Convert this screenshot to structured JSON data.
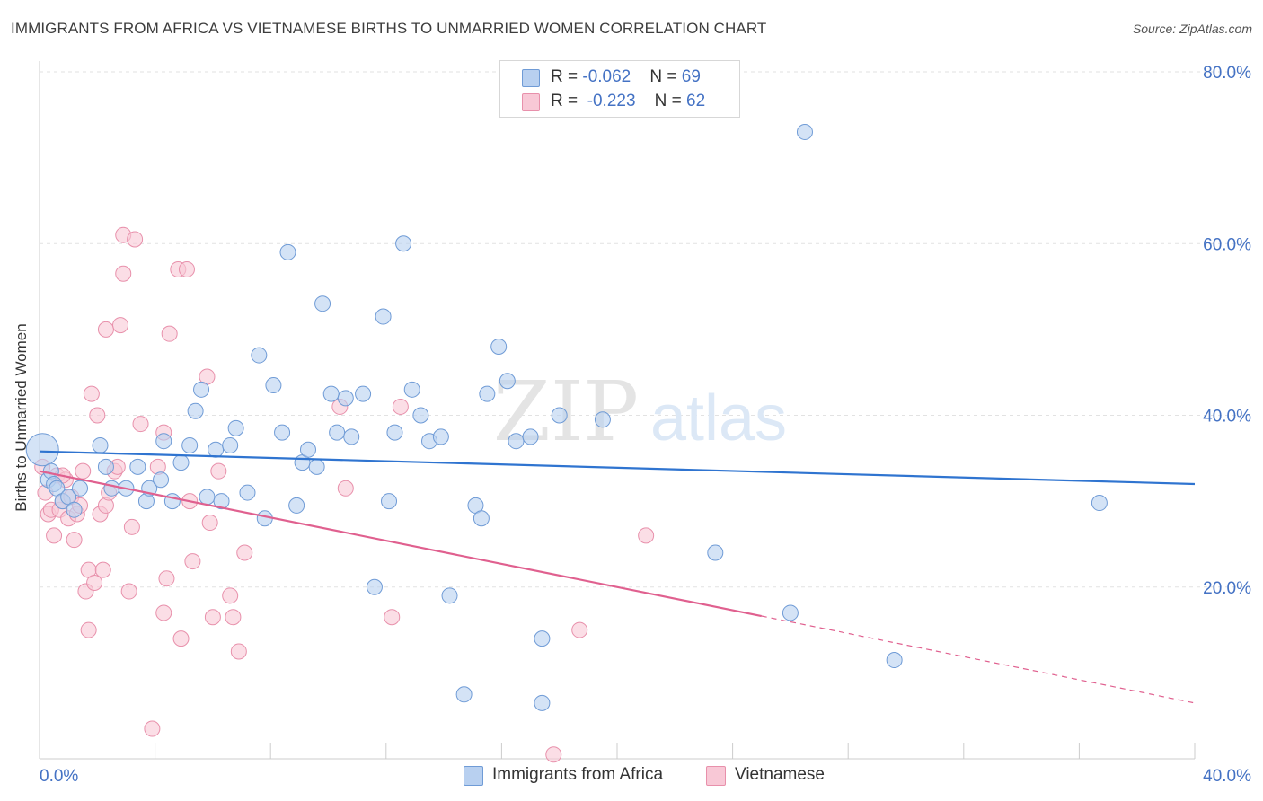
{
  "title": "IMMIGRANTS FROM AFRICA VS VIETNAMESE BIRTHS TO UNMARRIED WOMEN CORRELATION CHART",
  "source": "Source: ZipAtlas.com",
  "watermark": {
    "zip": "ZIP",
    "atlas": "atlas"
  },
  "legend": {
    "rows": [
      {
        "r_label": "R = ",
        "r_value": "-0.062",
        "n_label": "N = ",
        "n_value": "69"
      },
      {
        "r_label": "R = ",
        "r_value": "-0.223",
        "n_label": "N = ",
        "n_value": "62"
      }
    ]
  },
  "bottom_legend": [
    "Immigrants from Africa",
    "Vietnamese"
  ],
  "colors": {
    "blue_fill": "#b8d0f0",
    "blue_stroke": "#6f9bd6",
    "blue_line": "#2f74d0",
    "pink_fill": "#f8c8d6",
    "pink_stroke": "#e890ab",
    "pink_line": "#e0608f",
    "tick_label": "#4472c4",
    "grid": "#e2e2e2"
  },
  "chart_data": {
    "type": "scatter",
    "title": "IMMIGRANTS FROM AFRICA VS VIETNAMESE BIRTHS TO UNMARRIED WOMEN CORRELATION CHART",
    "xlabel": "",
    "ylabel": "Births to Unmarried Women",
    "xlim": [
      0,
      40
    ],
    "ylim": [
      0,
      80
    ],
    "x_tick_labels": [
      "0.0%",
      "40.0%"
    ],
    "y_ticks": [
      20,
      40,
      60,
      80
    ],
    "y_tick_labels": [
      "20.0%",
      "40.0%",
      "60.0%",
      "80.0%"
    ],
    "series": [
      {
        "name": "Immigrants from Africa",
        "color": "blue",
        "trend": {
          "x": [
            0,
            40
          ],
          "y": [
            35.8,
            32.0
          ],
          "solid_to": 40
        },
        "points": [
          [
            0.1,
            36.0
          ],
          [
            0.3,
            32.5
          ],
          [
            0.4,
            33.5
          ],
          [
            0.5,
            32.0
          ],
          [
            0.6,
            31.5
          ],
          [
            0.8,
            30.0
          ],
          [
            1.0,
            30.5
          ],
          [
            1.2,
            29.0
          ],
          [
            1.4,
            31.5
          ],
          [
            2.1,
            36.5
          ],
          [
            2.3,
            34.0
          ],
          [
            2.5,
            31.5
          ],
          [
            3.0,
            31.5
          ],
          [
            3.4,
            34.0
          ],
          [
            3.7,
            30.0
          ],
          [
            3.8,
            31.5
          ],
          [
            4.2,
            32.5
          ],
          [
            4.3,
            37.0
          ],
          [
            4.6,
            30.0
          ],
          [
            4.9,
            34.5
          ],
          [
            5.2,
            36.5
          ],
          [
            5.4,
            40.5
          ],
          [
            5.6,
            43.0
          ],
          [
            5.8,
            30.5
          ],
          [
            6.1,
            36.0
          ],
          [
            6.3,
            30.0
          ],
          [
            6.6,
            36.5
          ],
          [
            6.8,
            38.5
          ],
          [
            7.2,
            31.0
          ],
          [
            7.6,
            47.0
          ],
          [
            7.8,
            28.0
          ],
          [
            8.1,
            43.5
          ],
          [
            8.4,
            38.0
          ],
          [
            8.6,
            59.0
          ],
          [
            8.9,
            29.5
          ],
          [
            9.1,
            34.5
          ],
          [
            9.3,
            36.0
          ],
          [
            9.6,
            34.0
          ],
          [
            9.8,
            53.0
          ],
          [
            10.1,
            42.5
          ],
          [
            10.3,
            38.0
          ],
          [
            10.6,
            42.0
          ],
          [
            10.8,
            37.5
          ],
          [
            11.2,
            42.5
          ],
          [
            11.6,
            20.0
          ],
          [
            11.9,
            51.5
          ],
          [
            12.1,
            30.0
          ],
          [
            12.3,
            38.0
          ],
          [
            12.6,
            60.0
          ],
          [
            12.9,
            43.0
          ],
          [
            13.2,
            40.0
          ],
          [
            13.5,
            37.0
          ],
          [
            13.9,
            37.5
          ],
          [
            14.2,
            19.0
          ],
          [
            14.7,
            7.5
          ],
          [
            15.1,
            29.5
          ],
          [
            15.3,
            28.0
          ],
          [
            15.5,
            42.5
          ],
          [
            15.9,
            48.0
          ],
          [
            16.2,
            44.0
          ],
          [
            16.5,
            37.0
          ],
          [
            17.0,
            37.5
          ],
          [
            17.4,
            14.0
          ],
          [
            17.4,
            6.5
          ],
          [
            18.0,
            40.0
          ],
          [
            19.5,
            39.5
          ],
          [
            23.4,
            24.0
          ],
          [
            26.0,
            17.0
          ],
          [
            26.5,
            73.0
          ],
          [
            29.6,
            11.5
          ],
          [
            36.7,
            29.8
          ]
        ]
      },
      {
        "name": "Vietnamese",
        "color": "pink",
        "trend": {
          "x": [
            0,
            40
          ],
          "y": [
            33.5,
            6.5
          ],
          "solid_to": 25
        },
        "points": [
          [
            0.1,
            34.0
          ],
          [
            0.2,
            31.0
          ],
          [
            0.3,
            28.5
          ],
          [
            0.4,
            29.0
          ],
          [
            0.5,
            26.0
          ],
          [
            0.6,
            33.0
          ],
          [
            0.7,
            29.0
          ],
          [
            0.8,
            30.0
          ],
          [
            0.9,
            32.5
          ],
          [
            1.0,
            28.0
          ],
          [
            1.1,
            30.5
          ],
          [
            1.2,
            25.5
          ],
          [
            1.3,
            28.5
          ],
          [
            1.4,
            29.5
          ],
          [
            1.5,
            33.5
          ],
          [
            1.6,
            19.5
          ],
          [
            1.7,
            15.0
          ],
          [
            1.7,
            22.0
          ],
          [
            1.8,
            42.5
          ],
          [
            1.9,
            20.5
          ],
          [
            2.0,
            40.0
          ],
          [
            2.1,
            28.5
          ],
          [
            2.2,
            22.0
          ],
          [
            2.3,
            29.5
          ],
          [
            2.4,
            31.0
          ],
          [
            2.3,
            50.0
          ],
          [
            2.6,
            33.5
          ],
          [
            2.7,
            34.0
          ],
          [
            2.8,
            50.5
          ],
          [
            2.9,
            61.0
          ],
          [
            2.9,
            56.5
          ],
          [
            3.1,
            19.5
          ],
          [
            3.2,
            27.0
          ],
          [
            3.3,
            60.5
          ],
          [
            3.5,
            39.0
          ],
          [
            3.9,
            3.5
          ],
          [
            4.1,
            34.0
          ],
          [
            4.3,
            17.0
          ],
          [
            4.3,
            38.0
          ],
          [
            4.4,
            21.0
          ],
          [
            4.5,
            49.5
          ],
          [
            4.8,
            57.0
          ],
          [
            4.9,
            14.0
          ],
          [
            5.1,
            57.0
          ],
          [
            5.2,
            30.0
          ],
          [
            5.3,
            23.0
          ],
          [
            5.8,
            44.5
          ],
          [
            5.9,
            27.5
          ],
          [
            6.0,
            16.5
          ],
          [
            6.2,
            33.5
          ],
          [
            6.6,
            19.0
          ],
          [
            6.7,
            16.5
          ],
          [
            6.9,
            12.5
          ],
          [
            7.1,
            24.0
          ],
          [
            10.4,
            41.0
          ],
          [
            10.6,
            31.5
          ],
          [
            12.2,
            16.5
          ],
          [
            12.5,
            41.0
          ],
          [
            17.8,
            0.5
          ],
          [
            18.7,
            15.0
          ],
          [
            21.0,
            26.0
          ],
          [
            0.8,
            33.0
          ]
        ]
      }
    ]
  }
}
